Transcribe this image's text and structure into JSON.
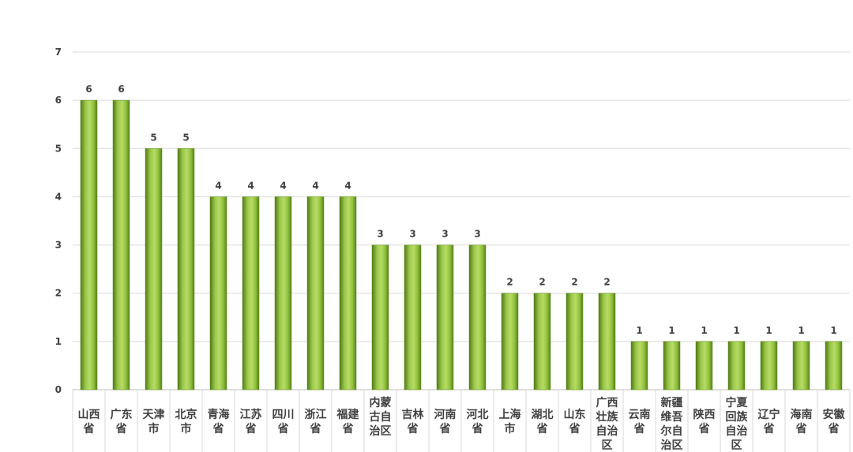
{
  "chart_data": {
    "type": "bar",
    "categories": [
      "山西省",
      "广东省",
      "天津市",
      "北京市",
      "青海省",
      "江苏省",
      "四川省",
      "浙江省",
      "福建省",
      "内蒙古自治区",
      "吉林省",
      "河南省",
      "河北省",
      "上海市",
      "湖北省",
      "山东省",
      "广西壮族自治区",
      "云南省",
      "新疆维吾尔自治区",
      "陕西省",
      "宁夏回族自治区",
      "辽宁省",
      "海南省",
      "安徽省"
    ],
    "category_lines": [
      [
        "山西",
        "省"
      ],
      [
        "广东",
        "省"
      ],
      [
        "天津",
        "市"
      ],
      [
        "北京",
        "市"
      ],
      [
        "青海",
        "省"
      ],
      [
        "江苏",
        "省"
      ],
      [
        "四川",
        "省"
      ],
      [
        "浙江",
        "省"
      ],
      [
        "福建",
        "省"
      ],
      [
        "内蒙",
        "古自",
        "治区"
      ],
      [
        "吉林",
        "省"
      ],
      [
        "河南",
        "省"
      ],
      [
        "河北",
        "省"
      ],
      [
        "上海",
        "市"
      ],
      [
        "湖北",
        "省"
      ],
      [
        "山东",
        "省"
      ],
      [
        "广西",
        "壮族",
        "自治",
        "区"
      ],
      [
        "云南",
        "省"
      ],
      [
        "新疆",
        "维吾",
        "尔自",
        "治区"
      ],
      [
        "陕西",
        "省"
      ],
      [
        "宁夏",
        "回族",
        "自治",
        "区"
      ],
      [
        "辽宁",
        "省"
      ],
      [
        "海南",
        "省"
      ],
      [
        "安徽",
        "省"
      ]
    ],
    "values": [
      6,
      6,
      5,
      5,
      4,
      4,
      4,
      4,
      4,
      3,
      3,
      3,
      3,
      2,
      2,
      2,
      2,
      1,
      1,
      1,
      1,
      1,
      1,
      1
    ],
    "yticks": [
      "0",
      "1",
      "2",
      "3",
      "4",
      "5",
      "6",
      "7"
    ],
    "ylim": [
      0,
      7
    ],
    "grid": true,
    "data_labels": true,
    "bar_color": "#92c13c",
    "bar_dark": "#5e8a1e",
    "title": "",
    "xlabel": "",
    "ylabel": ""
  }
}
